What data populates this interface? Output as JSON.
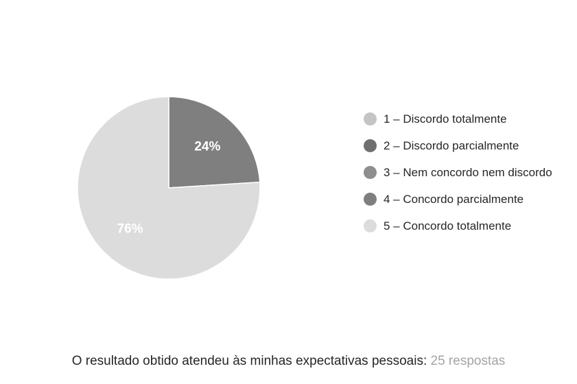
{
  "chart_data": {
    "type": "pie",
    "title": "",
    "categories": [
      "1 – Discordo totalmente",
      "2 – Discordo parcialmente",
      "3 – Nem concordo nem discordo",
      "4 – Concordo parcialmente",
      "5 – Concordo totalmente"
    ],
    "values": [
      0,
      0,
      0,
      24,
      76
    ],
    "value_labels": [
      "",
      "",
      "",
      "24%",
      "76%"
    ],
    "colors": [
      "#c4c4c4",
      "#6f6f6f",
      "#8e8e8e",
      "#7f7f7f",
      "#dcdcdc"
    ],
    "legend_position": "right"
  },
  "caption": {
    "question": "O resultado obtido atendeu às minhas expectativas pessoais:",
    "responses": "25 respostas"
  }
}
